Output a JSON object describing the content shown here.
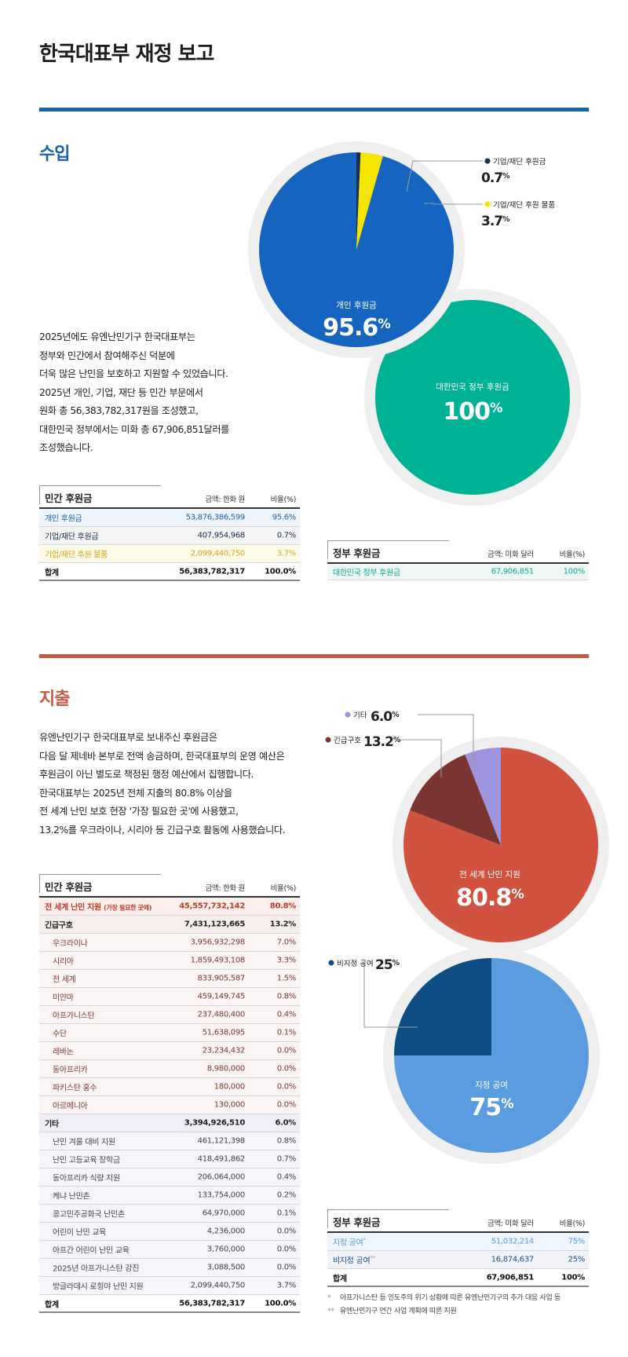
{
  "title": "한국대표부 재정 보고",
  "income": {
    "heading": "수입",
    "paragraph": [
      "2025년에도 유엔난민기구 한국대표부는",
      "정부와 민간에서 참여해주신 덕분에",
      "더욱 많은 난민을 보호하고 지원할 수 있었습니다.",
      "2025년 개인, 기업, 재단 등 민간 부문에서",
      "원화 총 56,383,782,317원을 조성했고,",
      "대한민국 정부에서는 미화 총 67,906,851달러를",
      "조성했습니다."
    ],
    "private_table": {
      "title": "민간 후원금",
      "amount_header": "금액: 한화 원",
      "pct_header": "비율(%)",
      "rows": [
        {
          "label": "개인 후원금",
          "amount": "53,876,386,599",
          "pct": "95.6%",
          "color": "#1a63a8",
          "bg": "#eef4f9"
        },
        {
          "label": "기업/재단 후원금",
          "amount": "407,954,968",
          "pct": "0.7%",
          "color": "#1b2f4b",
          "bg": "#f4f4f4"
        },
        {
          "label": "기업/재단 후원 물품",
          "amount": "2,099,440,750",
          "pct": "3.7%",
          "color": "#d9a31c",
          "bg": "#fdfbe9"
        }
      ],
      "total": {
        "label": "합계",
        "amount": "56,383,782,317",
        "pct": "100.0%"
      }
    },
    "gov_table": {
      "title": "정부 후원금",
      "amount_header": "금액: 미화 달러",
      "pct_header": "비율(%)",
      "rows": [
        {
          "label": "대한민국 정부 후원금",
          "amount": "67,906,851",
          "pct": "100%",
          "color": "#0ea88e",
          "bg": "#eef9f6"
        }
      ]
    }
  },
  "expense": {
    "heading": "지출",
    "paragraph": [
      "유엔난민기구 한국대표부로 보내주신 후원금은",
      "다음 달 제네바 본부로 전액 송금하며, 한국대표부의 운영 예산은",
      "후원금이 아닌 별도로 책정된 행정 예산에서 집행합니다.",
      "한국대표부는 2025년 전체 지출의 80.8% 이상을",
      "전 세계 난민 보호 현장 '가장 필요한 곳'에 사용했고,",
      "13.2%를 우크라이나, 시리아 등 긴급구호 활동에 사용했습니다."
    ],
    "private_table": {
      "title": "민간 후원금",
      "amount_header": "금액: 한화 원",
      "pct_header": "비율(%)",
      "rows": [
        {
          "label": "전 세계 난민 지원",
          "sub": "(가장 필요한 곳에)",
          "amount": "45,557,732,142",
          "pct": "80.8%",
          "kind": "top",
          "color": "#c0392b",
          "bg": "#fbeeec"
        },
        {
          "label": "긴급구호",
          "amount": "7,431,123,665",
          "pct": "13.2%",
          "kind": "group",
          "color": "#222",
          "bg": "#f7efee"
        },
        {
          "label": "우크라이나",
          "amount": "3,956,932,298",
          "pct": "7.0%",
          "kind": "sub",
          "color": "#7a3a34",
          "bg": "#faf5f4"
        },
        {
          "label": "시리아",
          "amount": "1,859,493,108",
          "pct": "3.3%",
          "kind": "sub",
          "color": "#7a3a34",
          "bg": "#faf5f4"
        },
        {
          "label": "전 세계",
          "amount": "833,905,587",
          "pct": "1.5%",
          "kind": "sub",
          "color": "#7a3a34",
          "bg": "#faf5f4"
        },
        {
          "label": "미얀마",
          "amount": "459,149,745",
          "pct": "0.8%",
          "kind": "sub",
          "color": "#7a3a34",
          "bg": "#faf5f4"
        },
        {
          "label": "아프가니스탄",
          "amount": "237,480,400",
          "pct": "0.4%",
          "kind": "sub",
          "color": "#7a3a34",
          "bg": "#faf5f4"
        },
        {
          "label": "수단",
          "amount": "51,638,095",
          "pct": "0.1%",
          "kind": "sub",
          "color": "#7a3a34",
          "bg": "#faf5f4"
        },
        {
          "label": "레바논",
          "amount": "23,234,432",
          "pct": "0.0%",
          "kind": "sub",
          "color": "#7a3a34",
          "bg": "#faf5f4"
        },
        {
          "label": "동아프리카",
          "amount": "8,980,000",
          "pct": "0.0%",
          "kind": "sub",
          "color": "#7a3a34",
          "bg": "#faf5f4"
        },
        {
          "label": "파키스탄 홍수",
          "amount": "180,000",
          "pct": "0.0%",
          "kind": "sub",
          "color": "#7a3a34",
          "bg": "#faf5f4"
        },
        {
          "label": "아르메니아",
          "amount": "130,000",
          "pct": "0.0%",
          "kind": "sub",
          "color": "#7a3a34",
          "bg": "#faf5f4"
        },
        {
          "label": "기타",
          "amount": "3,394,926,510",
          "pct": "6.0%",
          "kind": "group",
          "color": "#222",
          "bg": "#f0eff8"
        },
        {
          "label": "난민 겨울 대비 지원",
          "amount": "461,121,398",
          "pct": "0.8%",
          "kind": "sub",
          "color": "#444",
          "bg": "#f6f5fb"
        },
        {
          "label": "난민 고등교육 장학금",
          "amount": "418,491,862",
          "pct": "0.7%",
          "kind": "sub",
          "color": "#444",
          "bg": "#f6f5fb"
        },
        {
          "label": "동아프리카 식량 지원",
          "amount": "206,064,000",
          "pct": "0.4%",
          "kind": "sub",
          "color": "#444",
          "bg": "#f6f5fb"
        },
        {
          "label": "케냐 난민촌",
          "amount": "133,754,000",
          "pct": "0.2%",
          "kind": "sub",
          "color": "#444",
          "bg": "#f6f5fb"
        },
        {
          "label": "콩고민주공화국 난민촌",
          "amount": "64,970,000",
          "pct": "0.1%",
          "kind": "sub",
          "color": "#444",
          "bg": "#f6f5fb"
        },
        {
          "label": "어린이 난민 교육",
          "amount": "4,236,000",
          "pct": "0.0%",
          "kind": "sub",
          "color": "#444",
          "bg": "#f6f5fb"
        },
        {
          "label": "아프간 어린이 난민 교육",
          "amount": "3,760,000",
          "pct": "0.0%",
          "kind": "sub",
          "color": "#444",
          "bg": "#f6f5fb"
        },
        {
          "label": "2025년 아프가니스탄 강진",
          "amount": "3,088,500",
          "pct": "0.0%",
          "kind": "sub",
          "color": "#444",
          "bg": "#f6f5fb"
        },
        {
          "label": "방글라데시 로힝야 난민 지원",
          "amount": "2,099,440,750",
          "pct": "3.7%",
          "kind": "sub",
          "color": "#444",
          "bg": "#f6f5fb"
        }
      ],
      "total": {
        "label": "합계",
        "amount": "56,383,782,317",
        "pct": "100.0%"
      }
    },
    "gov_table": {
      "title": "정부 후원금",
      "amount_header": "금액: 미화 달러",
      "pct_header": "비율(%)",
      "rows": [
        {
          "label": "지정 공여",
          "mark": "*",
          "amount": "51,032,214",
          "pct": "75%",
          "color": "#5b9be0",
          "bg": "#eef5fc"
        },
        {
          "label": "비지정 공여",
          "mark": "**",
          "amount": "16,874,637",
          "pct": "25%",
          "color": "#1d4f86",
          "bg": "#f1f3f6"
        }
      ],
      "total": {
        "label": "합계",
        "amount": "67,906,851",
        "pct": "100%"
      }
    },
    "notes": [
      {
        "mark": "*",
        "text": "아프가니스탄 등 인도주의 위기 상황에 따른 유엔난민기구의 추가 대응 사업 등"
      },
      {
        "mark": "**",
        "text": "유엔난민기구 연간 사업 계획에 따른 지원"
      }
    ]
  },
  "chart_data": [
    {
      "type": "pie",
      "title": "",
      "series": [
        {
          "name": "",
          "values": [
            95.6,
            0.7,
            3.7
          ]
        }
      ],
      "categories": [
        "개인 후원금",
        "기업/재단 후원금",
        "기업/재단 후원 물품"
      ],
      "labels": [
        "95.6%",
        "0.7%",
        "3.7%"
      ],
      "colors": [
        "#1565c0",
        "#1b2f4b",
        "#f5e600"
      ]
    },
    {
      "type": "pie",
      "title": "",
      "series": [
        {
          "name": "",
          "values": [
            100
          ]
        }
      ],
      "categories": [
        "대한민국 정부 후원금"
      ],
      "labels": [
        "100%"
      ],
      "colors": [
        "#00b294"
      ]
    },
    {
      "type": "pie",
      "title": "",
      "series": [
        {
          "name": "",
          "values": [
            80.8,
            13.2,
            6.0
          ]
        }
      ],
      "categories": [
        "전 세계 난민 지원",
        "긴급구호",
        "기타"
      ],
      "labels": [
        "80.8%",
        "13.2%",
        "6.0%"
      ],
      "colors": [
        "#d1533f",
        "#7b3530",
        "#9e94de"
      ]
    },
    {
      "type": "pie",
      "title": "",
      "series": [
        {
          "name": "",
          "values": [
            75,
            25
          ]
        }
      ],
      "categories": [
        "지정 공여",
        "비지정 공여"
      ],
      "labels": [
        "75%",
        "25%"
      ],
      "colors": [
        "#5b9be0",
        "#0f4d85"
      ]
    }
  ]
}
